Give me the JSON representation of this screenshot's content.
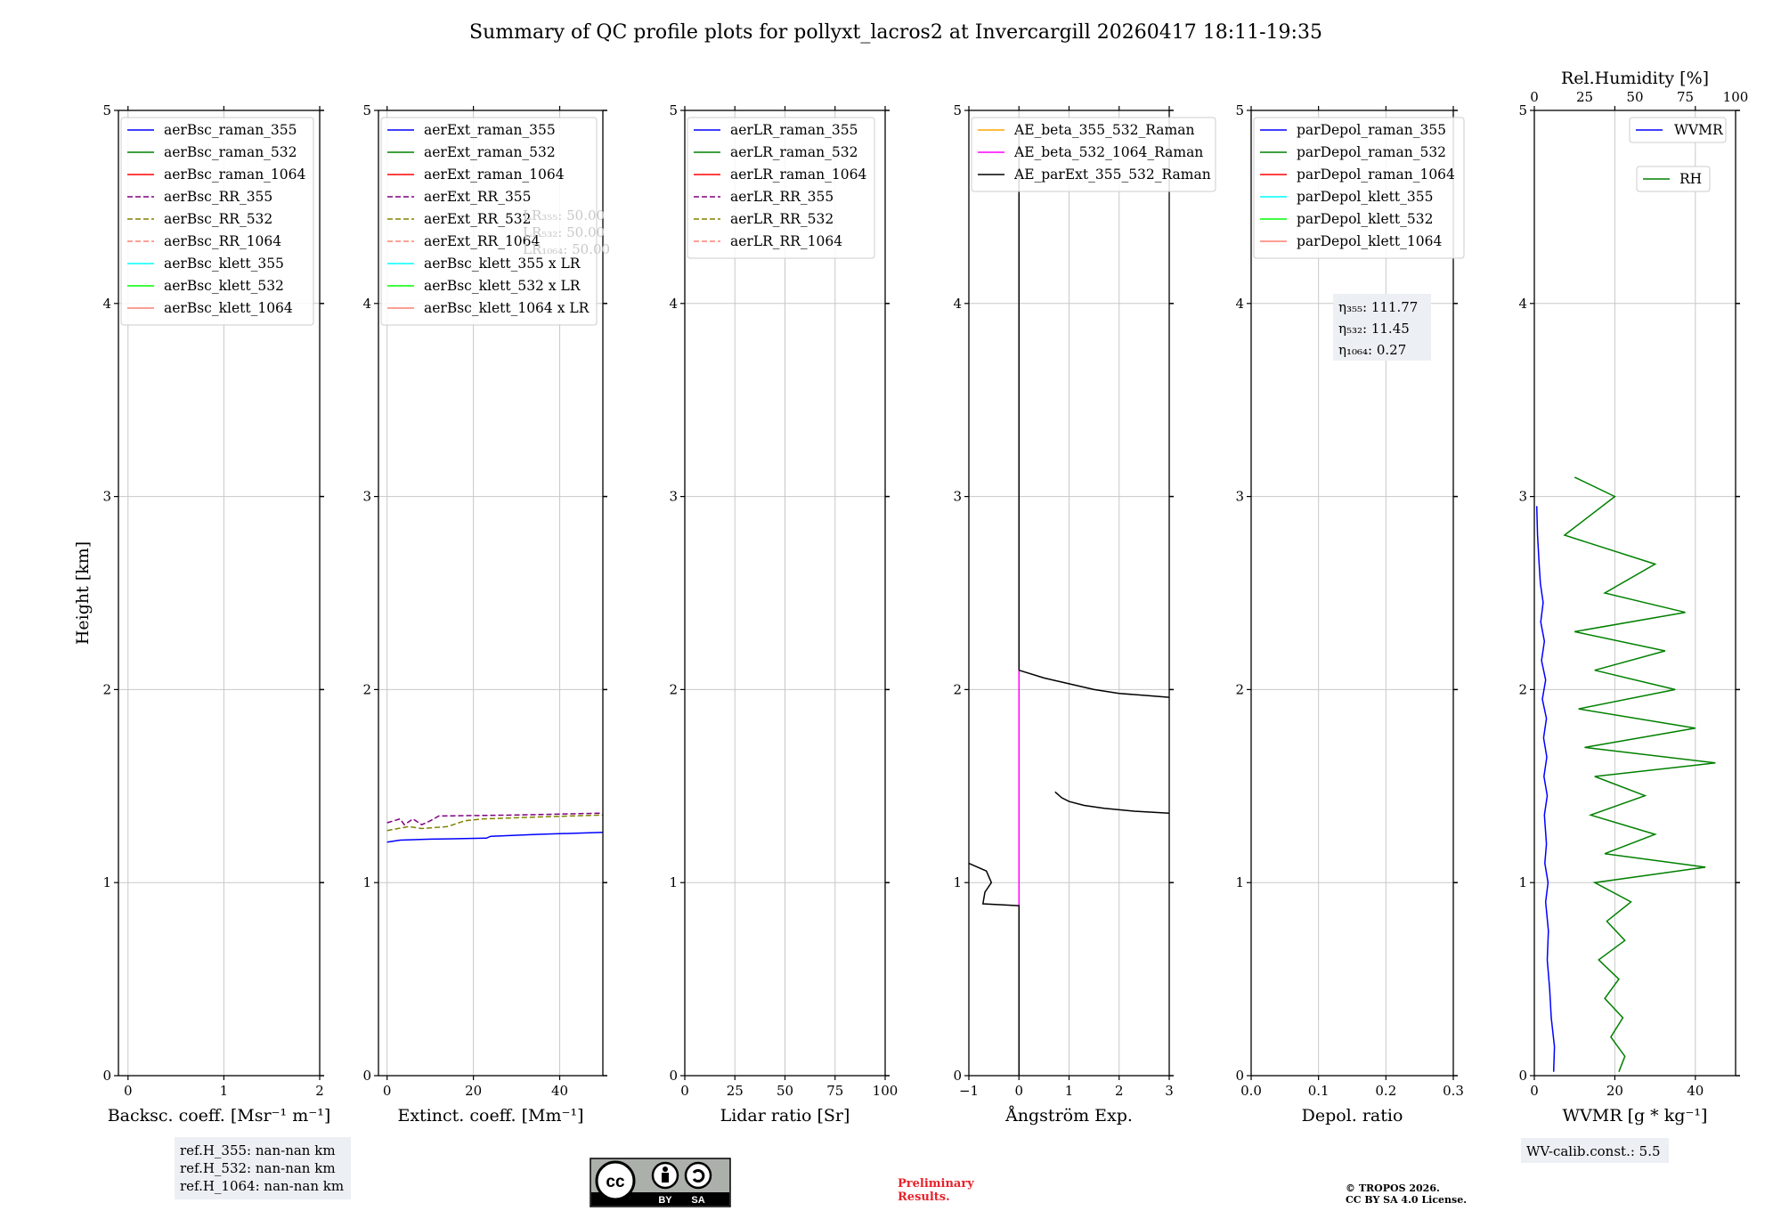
{
  "title": "Summary of QC profile plots for pollyxt_lacros2 at Invercargill 20260417 18:11-19:35",
  "colors": {
    "blue": "#0000ff",
    "green": "#008000",
    "red": "#ff0000",
    "purple": "#800080",
    "olive": "#808000",
    "salmon": "#fa8072",
    "cyan": "#00ffff",
    "lime": "#00ff00",
    "orange": "#ffa500",
    "magenta": "#ff00ff",
    "black": "#000000"
  },
  "chart_data": [
    {
      "id": "bsc",
      "type": "line",
      "xlabel": "Backsc. coeff. [Msr⁻¹ m⁻¹]",
      "ylabel": "Height [km]",
      "xlim": [
        -0.1,
        2
      ],
      "ylim": [
        0,
        5
      ],
      "xticks": [
        0,
        1,
        2
      ],
      "xtick_labels": [
        "0",
        "1",
        "2"
      ],
      "yticks": [
        0,
        1,
        2,
        3,
        4,
        5
      ],
      "ytick_labels": [
        "0",
        "1",
        "2",
        "3",
        "4",
        "5"
      ],
      "legend": [
        {
          "label": "aerBsc_raman_355",
          "color": "blue",
          "dash": false
        },
        {
          "label": "aerBsc_raman_532",
          "color": "green",
          "dash": false
        },
        {
          "label": "aerBsc_raman_1064",
          "color": "red",
          "dash": false
        },
        {
          "label": "aerBsc_RR_355",
          "color": "purple",
          "dash": true
        },
        {
          "label": "aerBsc_RR_532",
          "color": "olive",
          "dash": true
        },
        {
          "label": "aerBsc_RR_1064",
          "color": "salmon",
          "dash": true
        },
        {
          "label": "aerBsc_klett_355",
          "color": "cyan",
          "dash": false
        },
        {
          "label": "aerBsc_klett_532",
          "color": "lime",
          "dash": false
        },
        {
          "label": "aerBsc_klett_1064",
          "color": "salmon",
          "dash": false
        }
      ],
      "series": []
    },
    {
      "id": "ext",
      "type": "line",
      "xlabel": "Extinct. coeff. [Mm⁻¹]",
      "xlim": [
        -2,
        50
      ],
      "ylim": [
        0,
        5
      ],
      "xticks": [
        0,
        20,
        40
      ],
      "xtick_labels": [
        "0",
        "20",
        "40"
      ],
      "yticks": [
        0,
        1,
        2,
        3,
        4,
        5
      ],
      "ytick_labels": [
        "0",
        "1",
        "2",
        "3",
        "4",
        "5"
      ],
      "legend": [
        {
          "label": "aerExt_raman_355",
          "color": "blue",
          "dash": false
        },
        {
          "label": "aerExt_raman_532",
          "color": "green",
          "dash": false
        },
        {
          "label": "aerExt_raman_1064",
          "color": "red",
          "dash": false
        },
        {
          "label": "aerExt_RR_355",
          "color": "purple",
          "dash": true
        },
        {
          "label": "aerExt_RR_532",
          "color": "olive",
          "dash": true
        },
        {
          "label": "aerExt_RR_1064",
          "color": "salmon",
          "dash": true
        },
        {
          "label": "aerBsc_klett_355 x LR",
          "color": "cyan",
          "dash": false
        },
        {
          "label": "aerBsc_klett_532 x LR",
          "color": "lime",
          "dash": false
        },
        {
          "label": "aerBsc_klett_1064 x LR",
          "color": "salmon",
          "dash": false
        }
      ],
      "series": [
        {
          "name": "aerExt_raman_355",
          "color": "blue",
          "dash": false,
          "points": [
            [
              0,
              1.21
            ],
            [
              3,
              1.22
            ],
            [
              10,
              1.225
            ],
            [
              23,
              1.23
            ],
            [
              24,
              1.24
            ],
            [
              35,
              1.25
            ],
            [
              50,
              1.26
            ]
          ]
        },
        {
          "name": "aerExt_RR_355",
          "color": "purple",
          "dash": true,
          "points": [
            [
              0,
              1.31
            ],
            [
              3,
              1.33
            ],
            [
              4,
              1.3
            ],
            [
              6,
              1.33
            ],
            [
              8,
              1.3
            ],
            [
              10,
              1.32
            ],
            [
              12,
              1.345
            ],
            [
              30,
              1.35
            ],
            [
              50,
              1.36
            ]
          ]
        },
        {
          "name": "aerExt_RR_532",
          "color": "olive",
          "dash": true,
          "points": [
            [
              0,
              1.27
            ],
            [
              5,
              1.29
            ],
            [
              8,
              1.28
            ],
            [
              14,
              1.29
            ],
            [
              18,
              1.32
            ],
            [
              22,
              1.33
            ],
            [
              35,
              1.34
            ],
            [
              50,
              1.35
            ]
          ]
        }
      ],
      "lr_text": [
        "LR₃₅₅: 50.00",
        "LR₅₃₂: 50.00",
        "LR₁₀₆₄: 50.00"
      ]
    },
    {
      "id": "lr",
      "type": "line",
      "xlabel": "Lidar ratio [Sr]",
      "xlim": [
        0,
        100
      ],
      "ylim": [
        0,
        5
      ],
      "xticks": [
        0,
        25,
        50,
        75,
        100
      ],
      "xtick_labels": [
        "0",
        "25",
        "50",
        "75",
        "100"
      ],
      "yticks": [
        0,
        1,
        2,
        3,
        4,
        5
      ],
      "ytick_labels": [
        "0",
        "1",
        "2",
        "3",
        "4",
        "5"
      ],
      "legend": [
        {
          "label": "aerLR_raman_355",
          "color": "blue",
          "dash": false
        },
        {
          "label": "aerLR_raman_532",
          "color": "green",
          "dash": false
        },
        {
          "label": "aerLR_raman_1064",
          "color": "red",
          "dash": false
        },
        {
          "label": "aerLR_RR_355",
          "color": "purple",
          "dash": true
        },
        {
          "label": "aerLR_RR_532",
          "color": "olive",
          "dash": true
        },
        {
          "label": "aerLR_RR_1064",
          "color": "salmon",
          "dash": true
        }
      ],
      "series": []
    },
    {
      "id": "ae",
      "type": "line",
      "xlabel": "Ångström Exp.",
      "xlim": [
        -1,
        3
      ],
      "ylim": [
        0,
        5
      ],
      "xticks": [
        -1,
        0,
        1,
        2,
        3
      ],
      "xtick_labels": [
        "−1",
        "0",
        "1",
        "2",
        "3"
      ],
      "yticks": [
        0,
        1,
        2,
        3,
        4,
        5
      ],
      "ytick_labels": [
        "0",
        "1",
        "2",
        "3",
        "4",
        "5"
      ],
      "legend": [
        {
          "label": "AE_beta_355_532_Raman",
          "color": "orange",
          "dash": false
        },
        {
          "label": "AE_beta_532_1064_Raman",
          "color": "magenta",
          "dash": false
        },
        {
          "label": "AE_parExt_355_532_Raman",
          "color": "black",
          "dash": false
        }
      ],
      "series": [
        {
          "name": "AE_beta_532_1064_Raman",
          "color": "magenta",
          "dash": false,
          "points": [
            [
              0,
              0.88
            ],
            [
              0,
              2.1
            ]
          ]
        },
        {
          "name": "AE_parExt_355_532_Raman_a",
          "color": "black",
          "dash": false,
          "points": [
            [
              0,
              0
            ],
            [
              0,
              0.88
            ],
            [
              -0.72,
              0.89
            ],
            [
              -0.68,
              0.95
            ],
            [
              -0.55,
              1.0
            ],
            [
              -0.65,
              1.06
            ],
            [
              -1,
              1.1
            ]
          ]
        },
        {
          "name": "AE_parExt_355_532_Raman_b",
          "color": "black",
          "dash": false,
          "points": [
            [
              0,
              2.1
            ],
            [
              0,
              4.9
            ]
          ]
        },
        {
          "name": "AE_parExt_355_532_Raman_c",
          "color": "black",
          "dash": false,
          "points": [
            [
              0,
              2.1
            ],
            [
              0.5,
              2.06
            ],
            [
              1.0,
              2.03
            ],
            [
              1.5,
              2.0
            ],
            [
              2.0,
              1.98
            ],
            [
              2.5,
              1.97
            ],
            [
              3,
              1.96
            ]
          ]
        },
        {
          "name": "AE_parExt_355_532_Raman_d",
          "color": "black",
          "dash": false,
          "points": [
            [
              0.72,
              1.47
            ],
            [
              0.85,
              1.44
            ],
            [
              1.0,
              1.42
            ],
            [
              1.3,
              1.4
            ],
            [
              1.7,
              1.385
            ],
            [
              2.3,
              1.37
            ],
            [
              3,
              1.36
            ]
          ]
        }
      ]
    },
    {
      "id": "depol",
      "type": "line",
      "xlabel": "Depol. ratio",
      "xlim": [
        0,
        0.3
      ],
      "ylim": [
        0,
        5
      ],
      "xticks": [
        0,
        0.1,
        0.2,
        0.3
      ],
      "xtick_labels": [
        "0.0",
        "0.1",
        "0.2",
        "0.3"
      ],
      "yticks": [
        0,
        1,
        2,
        3,
        4,
        5
      ],
      "ytick_labels": [
        "0",
        "1",
        "2",
        "3",
        "4",
        "5"
      ],
      "legend": [
        {
          "label": "parDepol_raman_355",
          "color": "blue",
          "dash": false
        },
        {
          "label": "parDepol_raman_532",
          "color": "green",
          "dash": false
        },
        {
          "label": "parDepol_raman_1064",
          "color": "red",
          "dash": false
        },
        {
          "label": "parDepol_klett_355",
          "color": "cyan",
          "dash": false
        },
        {
          "label": "parDepol_klett_532",
          "color": "lime",
          "dash": false
        },
        {
          "label": "parDepol_klett_1064",
          "color": "salmon",
          "dash": false
        }
      ],
      "series": [],
      "eta_text": [
        "η₃₅₅: 111.77",
        "η₅₃₂: 11.45",
        "η₁₀₆₄: 0.27"
      ]
    },
    {
      "id": "wv",
      "type": "line",
      "xlabel": "WVMR [g * kg⁻¹]",
      "x2label": "Rel.Humidity [%]",
      "xlim": [
        0,
        50
      ],
      "x2lim": [
        0,
        100
      ],
      "ylim": [
        0,
        5
      ],
      "xticks": [
        0,
        20,
        40
      ],
      "xtick_labels": [
        "0",
        "20",
        "40"
      ],
      "x2ticks": [
        0,
        25,
        50,
        75,
        100
      ],
      "x2tick_labels": [
        "0",
        "25",
        "50",
        "75",
        "100"
      ],
      "yticks": [
        0,
        1,
        2,
        3,
        4,
        5
      ],
      "ytick_labels": [
        "0",
        "1",
        "2",
        "3",
        "4",
        "5"
      ],
      "legend": [
        {
          "label": "WVMR",
          "color": "blue",
          "dash": false
        },
        {
          "label": "RH",
          "color": "green",
          "dash": false
        }
      ],
      "series": [
        {
          "name": "WVMR",
          "axis": "x",
          "color": "blue",
          "points": [
            [
              4.8,
              0.02
            ],
            [
              5.0,
              0.15
            ],
            [
              4.2,
              0.3
            ],
            [
              3.8,
              0.45
            ],
            [
              3.2,
              0.6
            ],
            [
              3.5,
              0.75
            ],
            [
              2.8,
              0.9
            ],
            [
              3.4,
              1.0
            ],
            [
              2.6,
              1.1
            ],
            [
              3.0,
              1.2
            ],
            [
              2.5,
              1.35
            ],
            [
              3.2,
              1.45
            ],
            [
              2.4,
              1.55
            ],
            [
              3.1,
              1.65
            ],
            [
              2.3,
              1.75
            ],
            [
              3.0,
              1.85
            ],
            [
              2.0,
              1.95
            ],
            [
              2.8,
              2.05
            ],
            [
              1.8,
              2.15
            ],
            [
              2.5,
              2.25
            ],
            [
              1.6,
              2.35
            ],
            [
              2.2,
              2.45
            ],
            [
              1.5,
              2.55
            ],
            [
              1.2,
              2.65
            ],
            [
              0.8,
              2.8
            ],
            [
              0.6,
              2.95
            ]
          ]
        },
        {
          "name": "RH",
          "axis": "x2",
          "color": "green",
          "points": [
            [
              42,
              0.02
            ],
            [
              45,
              0.1
            ],
            [
              38,
              0.2
            ],
            [
              44,
              0.3
            ],
            [
              35,
              0.4
            ],
            [
              42,
              0.5
            ],
            [
              32,
              0.6
            ],
            [
              45,
              0.7
            ],
            [
              36,
              0.8
            ],
            [
              48,
              0.9
            ],
            [
              30,
              1.0
            ],
            [
              85,
              1.08
            ],
            [
              35,
              1.15
            ],
            [
              60,
              1.25
            ],
            [
              28,
              1.35
            ],
            [
              55,
              1.45
            ],
            [
              30,
              1.55
            ],
            [
              90,
              1.62
            ],
            [
              25,
              1.7
            ],
            [
              80,
              1.8
            ],
            [
              22,
              1.9
            ],
            [
              70,
              2.0
            ],
            [
              30,
              2.1
            ],
            [
              65,
              2.2
            ],
            [
              20,
              2.3
            ],
            [
              75,
              2.4
            ],
            [
              35,
              2.5
            ],
            [
              60,
              2.65
            ],
            [
              15,
              2.8
            ],
            [
              40,
              3.0
            ],
            [
              20,
              3.1
            ]
          ]
        }
      ],
      "calib_text": "WV-calib.const.: 5.5"
    }
  ],
  "refh": [
    "ref.H_355: nan-nan km",
    "ref.H_532: nan-nan km",
    "ref.H_1064: nan-nan km"
  ],
  "prelim": [
    "Preliminary",
    "Results."
  ],
  "copyright": [
    "© TROPOS 2026.",
    "CC BY SA 4.0 License."
  ],
  "cc_badge": {
    "logo": "cc",
    "by": "BY",
    "sa": "SA"
  }
}
